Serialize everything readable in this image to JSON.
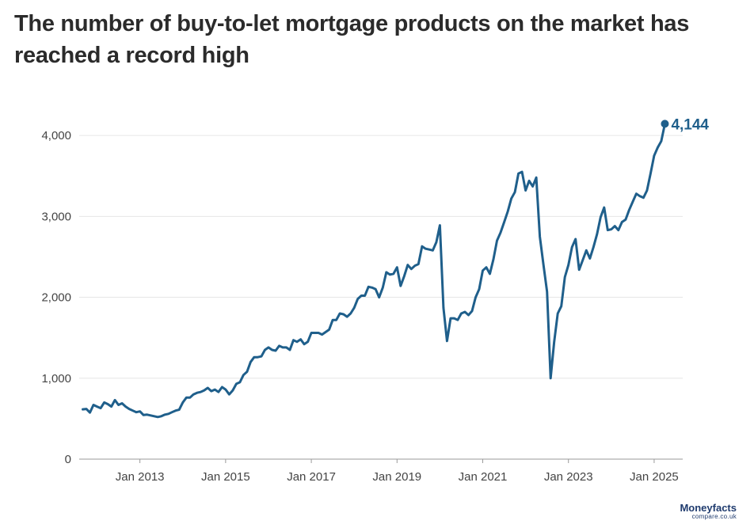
{
  "title": "The number of buy-to-let mortgage products on the market has reached a record high",
  "logo": {
    "brand": "Moneyfacts",
    "sub": "compare.co.uk"
  },
  "chart_data": {
    "type": "line",
    "title": "The number of buy-to-let mortgage products on the market has reached a record high",
    "xlabel": "",
    "ylabel": "",
    "grid": true,
    "ylim": [
      0,
      4500
    ],
    "xlim": [
      "2011-08",
      "2025-09"
    ],
    "y_ticks": [
      0,
      1000,
      2000,
      3000,
      4000
    ],
    "y_tick_labels": [
      "0",
      "1,000",
      "2,000",
      "3,000",
      "4,000"
    ],
    "x_ticks": [
      "2013-01",
      "2015-01",
      "2017-01",
      "2019-01",
      "2021-01",
      "2023-01",
      "2025-01"
    ],
    "x_tick_labels": [
      "Jan 2013",
      "Jan 2015",
      "Jan 2017",
      "Jan 2019",
      "Jan 2021",
      "Jan 2023",
      "Jan 2025"
    ],
    "end_label": "4,144",
    "colors": {
      "line": "#1f5f8b",
      "label": "#1f5f8b",
      "grid": "#e6e6e6",
      "axis_text": "#444444"
    },
    "series": [
      {
        "values": [
          [
            "2011-09",
            615
          ],
          [
            "2011-10",
            620
          ],
          [
            "2011-11",
            575
          ],
          [
            "2011-12",
            670
          ],
          [
            "2012-01",
            650
          ],
          [
            "2012-02",
            630
          ],
          [
            "2012-03",
            700
          ],
          [
            "2012-04",
            680
          ],
          [
            "2012-05",
            650
          ],
          [
            "2012-06",
            730
          ],
          [
            "2012-07",
            670
          ],
          [
            "2012-08",
            690
          ],
          [
            "2012-09",
            650
          ],
          [
            "2012-10",
            620
          ],
          [
            "2012-11",
            600
          ],
          [
            "2012-12",
            580
          ],
          [
            "2013-01",
            590
          ],
          [
            "2013-02",
            545
          ],
          [
            "2013-03",
            550
          ],
          [
            "2013-04",
            540
          ],
          [
            "2013-05",
            530
          ],
          [
            "2013-06",
            520
          ],
          [
            "2013-07",
            530
          ],
          [
            "2013-08",
            550
          ],
          [
            "2013-09",
            560
          ],
          [
            "2013-10",
            580
          ],
          [
            "2013-11",
            600
          ],
          [
            "2013-12",
            610
          ],
          [
            "2014-01",
            700
          ],
          [
            "2014-02",
            760
          ],
          [
            "2014-03",
            760
          ],
          [
            "2014-04",
            800
          ],
          [
            "2014-05",
            820
          ],
          [
            "2014-06",
            830
          ],
          [
            "2014-07",
            850
          ],
          [
            "2014-08",
            880
          ],
          [
            "2014-09",
            840
          ],
          [
            "2014-10",
            860
          ],
          [
            "2014-11",
            830
          ],
          [
            "2014-12",
            890
          ],
          [
            "2015-01",
            860
          ],
          [
            "2015-02",
            800
          ],
          [
            "2015-03",
            850
          ],
          [
            "2015-04",
            930
          ],
          [
            "2015-05",
            950
          ],
          [
            "2015-06",
            1040
          ],
          [
            "2015-07",
            1080
          ],
          [
            "2015-08",
            1200
          ],
          [
            "2015-09",
            1260
          ],
          [
            "2015-10",
            1260
          ],
          [
            "2015-11",
            1270
          ],
          [
            "2015-12",
            1350
          ],
          [
            "2016-01",
            1380
          ],
          [
            "2016-02",
            1350
          ],
          [
            "2016-03",
            1340
          ],
          [
            "2016-04",
            1400
          ],
          [
            "2016-05",
            1380
          ],
          [
            "2016-06",
            1380
          ],
          [
            "2016-07",
            1350
          ],
          [
            "2016-08",
            1470
          ],
          [
            "2016-09",
            1450
          ],
          [
            "2016-10",
            1480
          ],
          [
            "2016-11",
            1420
          ],
          [
            "2016-12",
            1450
          ],
          [
            "2017-01",
            1560
          ],
          [
            "2017-02",
            1560
          ],
          [
            "2017-03",
            1560
          ],
          [
            "2017-04",
            1540
          ],
          [
            "2017-05",
            1570
          ],
          [
            "2017-06",
            1600
          ],
          [
            "2017-07",
            1720
          ],
          [
            "2017-08",
            1720
          ],
          [
            "2017-09",
            1800
          ],
          [
            "2017-10",
            1790
          ],
          [
            "2017-11",
            1760
          ],
          [
            "2017-12",
            1800
          ],
          [
            "2018-01",
            1870
          ],
          [
            "2018-02",
            1980
          ],
          [
            "2018-03",
            2020
          ],
          [
            "2018-04",
            2020
          ],
          [
            "2018-05",
            2130
          ],
          [
            "2018-06",
            2120
          ],
          [
            "2018-07",
            2100
          ],
          [
            "2018-08",
            2000
          ],
          [
            "2018-09",
            2120
          ],
          [
            "2018-10",
            2310
          ],
          [
            "2018-11",
            2280
          ],
          [
            "2018-12",
            2290
          ],
          [
            "2019-01",
            2370
          ],
          [
            "2019-02",
            2140
          ],
          [
            "2019-03",
            2260
          ],
          [
            "2019-04",
            2400
          ],
          [
            "2019-05",
            2350
          ],
          [
            "2019-06",
            2390
          ],
          [
            "2019-07",
            2410
          ],
          [
            "2019-08",
            2630
          ],
          [
            "2019-09",
            2600
          ],
          [
            "2019-10",
            2590
          ],
          [
            "2019-11",
            2580
          ],
          [
            "2019-12",
            2680
          ],
          [
            "2020-01",
            2890
          ],
          [
            "2020-02",
            1870
          ],
          [
            "2020-03",
            1460
          ],
          [
            "2020-04",
            1740
          ],
          [
            "2020-05",
            1740
          ],
          [
            "2020-06",
            1720
          ],
          [
            "2020-07",
            1800
          ],
          [
            "2020-08",
            1820
          ],
          [
            "2020-09",
            1780
          ],
          [
            "2020-10",
            1830
          ],
          [
            "2020-11",
            2000
          ],
          [
            "2020-12",
            2100
          ],
          [
            "2021-01",
            2330
          ],
          [
            "2021-02",
            2370
          ],
          [
            "2021-03",
            2290
          ],
          [
            "2021-04",
            2470
          ],
          [
            "2021-05",
            2700
          ],
          [
            "2021-06",
            2800
          ],
          [
            "2021-07",
            2930
          ],
          [
            "2021-08",
            3060
          ],
          [
            "2021-09",
            3220
          ],
          [
            "2021-10",
            3300
          ],
          [
            "2021-11",
            3530
          ],
          [
            "2021-12",
            3550
          ],
          [
            "2022-01",
            3320
          ],
          [
            "2022-02",
            3440
          ],
          [
            "2022-03",
            3370
          ],
          [
            "2022-04",
            3480
          ],
          [
            "2022-05",
            2750
          ],
          [
            "2022-06",
            2400
          ],
          [
            "2022-07",
            2070
          ],
          [
            "2022-08",
            1000
          ],
          [
            "2022-09",
            1450
          ],
          [
            "2022-10",
            1800
          ],
          [
            "2022-11",
            1890
          ],
          [
            "2022-12",
            2250
          ],
          [
            "2023-01",
            2400
          ],
          [
            "2023-02",
            2620
          ],
          [
            "2023-03",
            2720
          ],
          [
            "2023-04",
            2340
          ],
          [
            "2023-05",
            2460
          ],
          [
            "2023-06",
            2580
          ],
          [
            "2023-07",
            2480
          ],
          [
            "2023-08",
            2620
          ],
          [
            "2023-09",
            2780
          ],
          [
            "2023-10",
            2990
          ],
          [
            "2023-11",
            3110
          ],
          [
            "2023-12",
            2830
          ],
          [
            "2024-01",
            2840
          ],
          [
            "2024-02",
            2880
          ],
          [
            "2024-03",
            2830
          ],
          [
            "2024-04",
            2930
          ],
          [
            "2024-05",
            2960
          ],
          [
            "2024-06",
            3080
          ],
          [
            "2024-07",
            3180
          ],
          [
            "2024-08",
            3280
          ],
          [
            "2024-09",
            3250
          ],
          [
            "2024-10",
            3230
          ],
          [
            "2024-11",
            3320
          ],
          [
            "2024-12",
            3530
          ],
          [
            "2025-01",
            3750
          ],
          [
            "2025-02",
            3850
          ],
          [
            "2025-03",
            3930
          ],
          [
            "2025-04",
            4144
          ]
        ]
      }
    ]
  }
}
